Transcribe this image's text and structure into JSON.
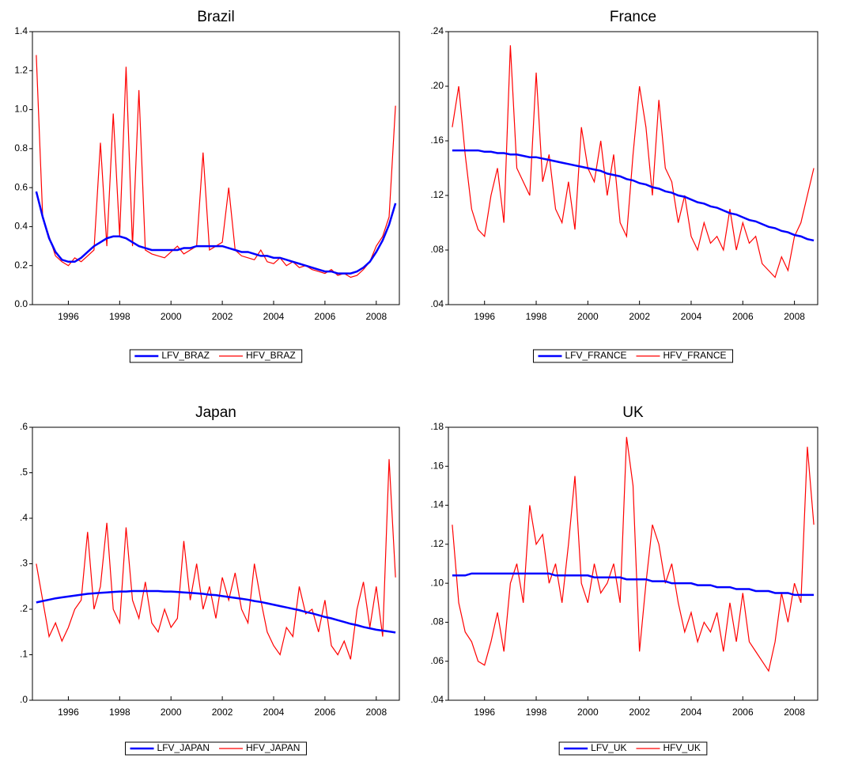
{
  "chart_data": [
    {
      "type": "line",
      "title": "Brazil",
      "x": [
        1994.75,
        1995,
        1995.25,
        1995.5,
        1995.75,
        1996,
        1996.25,
        1996.5,
        1996.75,
        1997,
        1997.25,
        1997.5,
        1997.75,
        1998,
        1998.25,
        1998.5,
        1998.75,
        1999,
        1999.25,
        1999.5,
        1999.75,
        2000,
        2000.25,
        2000.5,
        2000.75,
        2001,
        2001.25,
        2001.5,
        2001.75,
        2002,
        2002.25,
        2002.5,
        2002.75,
        2003,
        2003.25,
        2003.5,
        2003.75,
        2004,
        2004.25,
        2004.5,
        2004.75,
        2005,
        2005.25,
        2005.5,
        2005.75,
        2006,
        2006.25,
        2006.5,
        2006.75,
        2007,
        2007.25,
        2007.5,
        2007.75,
        2008,
        2008.25,
        2008.5,
        2008.75
      ],
      "series": [
        {
          "name": "LFV_BRAZ",
          "color": "#0000ff",
          "values": [
            0.58,
            0.45,
            0.34,
            0.27,
            0.23,
            0.22,
            0.22,
            0.24,
            0.27,
            0.3,
            0.32,
            0.34,
            0.35,
            0.35,
            0.34,
            0.32,
            0.3,
            0.29,
            0.28,
            0.28,
            0.28,
            0.28,
            0.28,
            0.29,
            0.29,
            0.3,
            0.3,
            0.3,
            0.3,
            0.3,
            0.29,
            0.28,
            0.27,
            0.27,
            0.26,
            0.25,
            0.25,
            0.24,
            0.24,
            0.23,
            0.22,
            0.21,
            0.2,
            0.19,
            0.18,
            0.17,
            0.17,
            0.16,
            0.16,
            0.16,
            0.17,
            0.19,
            0.22,
            0.27,
            0.33,
            0.41,
            0.52
          ]
        },
        {
          "name": "HFV_BRAZ",
          "color": "#ff0000",
          "values": [
            1.28,
            0.45,
            0.35,
            0.25,
            0.22,
            0.2,
            0.24,
            0.22,
            0.25,
            0.28,
            0.83,
            0.3,
            0.98,
            0.35,
            1.22,
            0.3,
            1.1,
            0.28,
            0.26,
            0.25,
            0.24,
            0.27,
            0.3,
            0.26,
            0.28,
            0.3,
            0.78,
            0.28,
            0.3,
            0.32,
            0.6,
            0.28,
            0.25,
            0.24,
            0.23,
            0.28,
            0.22,
            0.21,
            0.24,
            0.2,
            0.22,
            0.19,
            0.2,
            0.18,
            0.17,
            0.16,
            0.18,
            0.15,
            0.16,
            0.14,
            0.15,
            0.18,
            0.22,
            0.3,
            0.35,
            0.45,
            1.02
          ]
        }
      ],
      "xlim": [
        1994.6,
        2008.9
      ],
      "xticks": [
        1996,
        1998,
        2000,
        2002,
        2004,
        2006,
        2008
      ],
      "ylim": [
        0,
        1.4
      ],
      "yticks": [
        {
          "value": 0,
          "label": "0.0"
        },
        0.2,
        0.4,
        0.6,
        0.8,
        {
          "value": 1,
          "label": "1.0"
        },
        1.2,
        1.4
      ]
    },
    {
      "type": "line",
      "title": "France",
      "x": [
        1994.75,
        1995,
        1995.25,
        1995.5,
        1995.75,
        1996,
        1996.25,
        1996.5,
        1996.75,
        1997,
        1997.25,
        1997.5,
        1997.75,
        1998,
        1998.25,
        1998.5,
        1998.75,
        1999,
        1999.25,
        1999.5,
        1999.75,
        2000,
        2000.25,
        2000.5,
        2000.75,
        2001,
        2001.25,
        2001.5,
        2001.75,
        2002,
        2002.25,
        2002.5,
        2002.75,
        2003,
        2003.25,
        2003.5,
        2003.75,
        2004,
        2004.25,
        2004.5,
        2004.75,
        2005,
        2005.25,
        2005.5,
        2005.75,
        2006,
        2006.25,
        2006.5,
        2006.75,
        2007,
        2007.25,
        2007.5,
        2007.75,
        2008,
        2008.25,
        2008.5,
        2008.75
      ],
      "series": [
        {
          "name": "LFV_FRANCE",
          "color": "#0000ff",
          "values": [
            0.153,
            0.153,
            0.153,
            0.153,
            0.153,
            0.152,
            0.152,
            0.151,
            0.151,
            0.15,
            0.15,
            0.149,
            0.148,
            0.148,
            0.147,
            0.146,
            0.145,
            0.144,
            0.143,
            0.142,
            0.141,
            0.14,
            0.139,
            0.138,
            0.136,
            0.135,
            0.134,
            0.132,
            0.131,
            0.129,
            0.128,
            0.126,
            0.125,
            0.123,
            0.122,
            0.12,
            0.119,
            0.117,
            0.115,
            0.114,
            0.112,
            0.111,
            0.109,
            0.107,
            0.106,
            0.104,
            0.102,
            0.101,
            0.099,
            0.097,
            0.096,
            0.094,
            0.093,
            0.091,
            0.09,
            0.088,
            0.087
          ]
        },
        {
          "name": "HFV_FRANCE",
          "color": "#ff0000",
          "values": [
            0.17,
            0.2,
            0.15,
            0.11,
            0.095,
            0.09,
            0.12,
            0.14,
            0.1,
            0.23,
            0.14,
            0.13,
            0.12,
            0.21,
            0.13,
            0.15,
            0.11,
            0.1,
            0.13,
            0.095,
            0.17,
            0.14,
            0.13,
            0.16,
            0.12,
            0.15,
            0.1,
            0.09,
            0.15,
            0.2,
            0.17,
            0.12,
            0.19,
            0.14,
            0.13,
            0.1,
            0.12,
            0.09,
            0.08,
            0.1,
            0.085,
            0.09,
            0.08,
            0.11,
            0.08,
            0.1,
            0.085,
            0.09,
            0.07,
            0.065,
            0.06,
            0.075,
            0.065,
            0.09,
            0.1,
            0.12,
            0.14
          ]
        }
      ],
      "xlim": [
        1994.6,
        2008.9
      ],
      "xticks": [
        1996,
        1998,
        2000,
        2002,
        2004,
        2006,
        2008
      ],
      "ylim": [
        0.04,
        0.24
      ],
      "yticks": [
        {
          "value": 0.04,
          "label": ".04"
        },
        {
          "value": 0.08,
          "label": ".08"
        },
        {
          "value": 0.12,
          "label": ".12"
        },
        {
          "value": 0.16,
          "label": ".16"
        },
        {
          "value": 0.2,
          "label": ".20"
        },
        {
          "value": 0.24,
          "label": ".24"
        }
      ]
    },
    {
      "type": "line",
      "title": "Japan",
      "x": [
        1994.75,
        1995,
        1995.25,
        1995.5,
        1995.75,
        1996,
        1996.25,
        1996.5,
        1996.75,
        1997,
        1997.25,
        1997.5,
        1997.75,
        1998,
        1998.25,
        1998.5,
        1998.75,
        1999,
        1999.25,
        1999.5,
        1999.75,
        2000,
        2000.25,
        2000.5,
        2000.75,
        2001,
        2001.25,
        2001.5,
        2001.75,
        2002,
        2002.25,
        2002.5,
        2002.75,
        2003,
        2003.25,
        2003.5,
        2003.75,
        2004,
        2004.25,
        2004.5,
        2004.75,
        2005,
        2005.25,
        2005.5,
        2005.75,
        2006,
        2006.25,
        2006.5,
        2006.75,
        2007,
        2007.25,
        2007.5,
        2007.75,
        2008,
        2008.25,
        2008.5,
        2008.75
      ],
      "series": [
        {
          "name": "LFV_JAPAN",
          "color": "#0000ff",
          "values": [
            0.215,
            0.218,
            0.221,
            0.224,
            0.226,
            0.228,
            0.23,
            0.232,
            0.234,
            0.235,
            0.236,
            0.237,
            0.238,
            0.239,
            0.239,
            0.24,
            0.24,
            0.24,
            0.24,
            0.24,
            0.239,
            0.239,
            0.238,
            0.237,
            0.236,
            0.235,
            0.234,
            0.232,
            0.231,
            0.229,
            0.227,
            0.225,
            0.223,
            0.221,
            0.218,
            0.216,
            0.213,
            0.21,
            0.207,
            0.204,
            0.201,
            0.198,
            0.194,
            0.191,
            0.187,
            0.183,
            0.18,
            0.176,
            0.172,
            0.168,
            0.165,
            0.161,
            0.158,
            0.155,
            0.153,
            0.151,
            0.149
          ]
        },
        {
          "name": "HFV_JAPAN",
          "color": "#ff0000",
          "values": [
            0.3,
            0.22,
            0.14,
            0.17,
            0.13,
            0.16,
            0.2,
            0.22,
            0.37,
            0.2,
            0.25,
            0.39,
            0.2,
            0.17,
            0.38,
            0.22,
            0.18,
            0.26,
            0.17,
            0.15,
            0.2,
            0.16,
            0.18,
            0.35,
            0.22,
            0.3,
            0.2,
            0.25,
            0.18,
            0.27,
            0.22,
            0.28,
            0.2,
            0.17,
            0.3,
            0.22,
            0.15,
            0.12,
            0.1,
            0.16,
            0.14,
            0.25,
            0.19,
            0.2,
            0.15,
            0.22,
            0.12,
            0.1,
            0.13,
            0.09,
            0.2,
            0.26,
            0.16,
            0.25,
            0.14,
            0.53,
            0.27
          ]
        }
      ],
      "xlim": [
        1994.6,
        2008.9
      ],
      "xticks": [
        1996,
        1998,
        2000,
        2002,
        2004,
        2006,
        2008
      ],
      "ylim": [
        0,
        0.6
      ],
      "yticks": [
        {
          "value": 0,
          "label": ".0"
        },
        {
          "value": 0.1,
          "label": ".1"
        },
        {
          "value": 0.2,
          "label": ".2"
        },
        {
          "value": 0.3,
          "label": ".3"
        },
        {
          "value": 0.4,
          "label": ".4"
        },
        {
          "value": 0.5,
          "label": ".5"
        },
        {
          "value": 0.6,
          "label": ".6"
        }
      ]
    },
    {
      "type": "line",
      "title": "UK",
      "x": [
        1994.75,
        1995,
        1995.25,
        1995.5,
        1995.75,
        1996,
        1996.25,
        1996.5,
        1996.75,
        1997,
        1997.25,
        1997.5,
        1997.75,
        1998,
        1998.25,
        1998.5,
        1998.75,
        1999,
        1999.25,
        1999.5,
        1999.75,
        2000,
        2000.25,
        2000.5,
        2000.75,
        2001,
        2001.25,
        2001.5,
        2001.75,
        2002,
        2002.25,
        2002.5,
        2002.75,
        2003,
        2003.25,
        2003.5,
        2003.75,
        2004,
        2004.25,
        2004.5,
        2004.75,
        2005,
        2005.25,
        2005.5,
        2005.75,
        2006,
        2006.25,
        2006.5,
        2006.75,
        2007,
        2007.25,
        2007.5,
        2007.75,
        2008,
        2008.25,
        2008.5,
        2008.75
      ],
      "series": [
        {
          "name": "LFV_UK",
          "color": "#0000ff",
          "values": [
            0.104,
            0.104,
            0.104,
            0.105,
            0.105,
            0.105,
            0.105,
            0.105,
            0.105,
            0.105,
            0.105,
            0.105,
            0.105,
            0.105,
            0.105,
            0.105,
            0.104,
            0.104,
            0.104,
            0.104,
            0.104,
            0.104,
            0.103,
            0.103,
            0.103,
            0.103,
            0.103,
            0.102,
            0.102,
            0.102,
            0.102,
            0.101,
            0.101,
            0.101,
            0.1,
            0.1,
            0.1,
            0.1,
            0.099,
            0.099,
            0.099,
            0.098,
            0.098,
            0.098,
            0.097,
            0.097,
            0.097,
            0.096,
            0.096,
            0.096,
            0.095,
            0.095,
            0.095,
            0.094,
            0.094,
            0.094,
            0.094
          ]
        },
        {
          "name": "HFV_UK",
          "color": "#ff0000",
          "values": [
            0.13,
            0.09,
            0.075,
            0.07,
            0.06,
            0.058,
            0.07,
            0.085,
            0.065,
            0.1,
            0.11,
            0.09,
            0.14,
            0.12,
            0.125,
            0.1,
            0.11,
            0.09,
            0.12,
            0.155,
            0.1,
            0.09,
            0.11,
            0.095,
            0.1,
            0.11,
            0.09,
            0.175,
            0.15,
            0.065,
            0.1,
            0.13,
            0.12,
            0.1,
            0.11,
            0.09,
            0.075,
            0.085,
            0.07,
            0.08,
            0.075,
            0.085,
            0.065,
            0.09,
            0.07,
            0.095,
            0.07,
            0.065,
            0.06,
            0.055,
            0.07,
            0.095,
            0.08,
            0.1,
            0.09,
            0.17,
            0.13
          ]
        }
      ],
      "xlim": [
        1994.6,
        2008.9
      ],
      "xticks": [
        1996,
        1998,
        2000,
        2002,
        2004,
        2006,
        2008
      ],
      "ylim": [
        0.04,
        0.18
      ],
      "yticks": [
        {
          "value": 0.04,
          "label": ".04"
        },
        {
          "value": 0.06,
          "label": ".06"
        },
        {
          "value": 0.08,
          "label": ".08"
        },
        {
          "value": 0.1,
          "label": ".10"
        },
        {
          "value": 0.12,
          "label": ".12"
        },
        {
          "value": 0.14,
          "label": ".14"
        },
        {
          "value": 0.16,
          "label": ".16"
        },
        {
          "value": 0.18,
          "label": ".18"
        }
      ]
    }
  ]
}
